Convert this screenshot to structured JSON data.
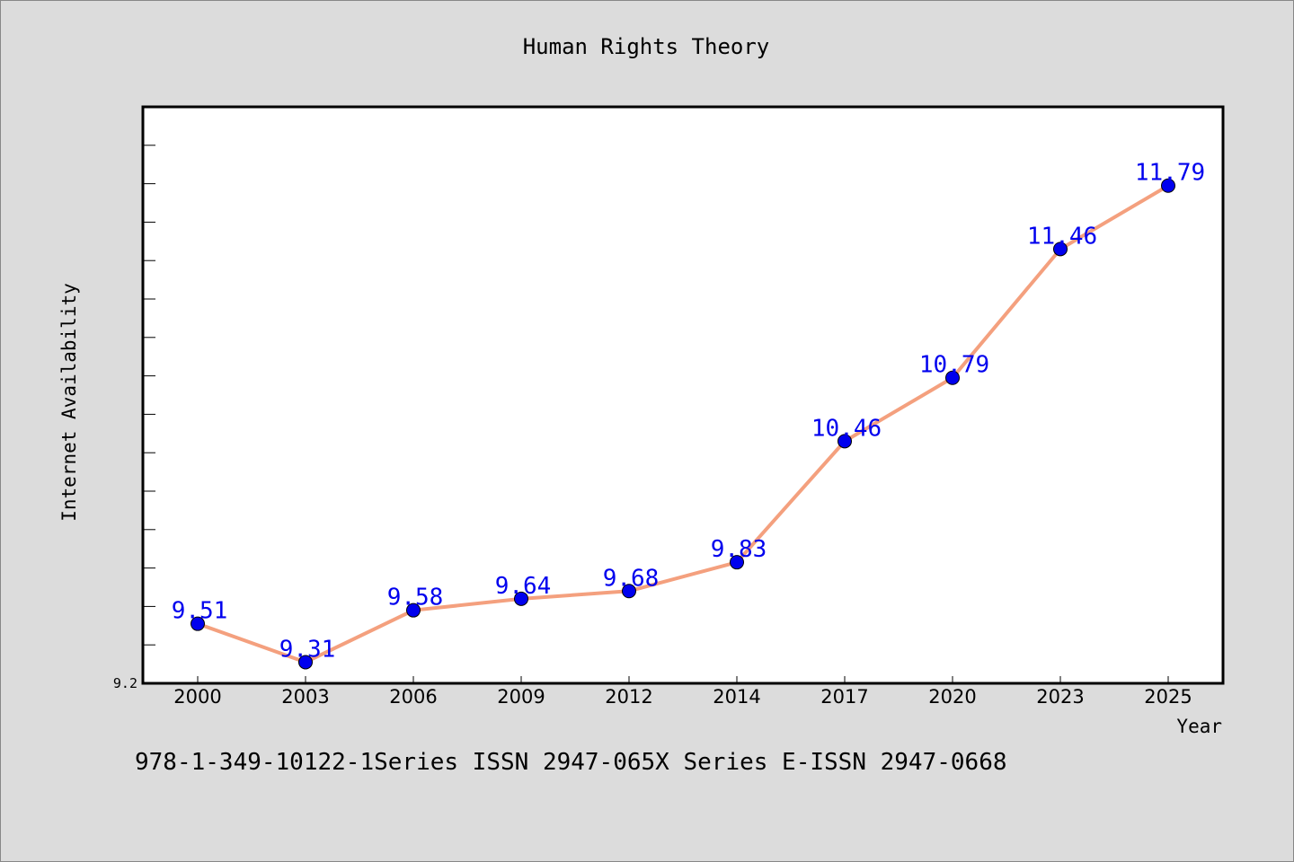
{
  "chart_data": {
    "type": "line",
    "title": "Human Rights Theory",
    "xlabel": "Year",
    "ylabel": "Internet Availability",
    "categories": [
      "2000",
      "2003",
      "2006",
      "2009",
      "2012",
      "2014",
      "2017",
      "2020",
      "2023",
      "2025"
    ],
    "series": [
      {
        "values": [
          9.51,
          9.31,
          9.58,
          9.64,
          9.68,
          9.83,
          10.46,
          10.79,
          11.46,
          11.79
        ],
        "line_color": "#f4a07e",
        "marker_color": "#0000ee"
      }
    ],
    "data_labels": [
      "9.51",
      "9.31",
      "9.58",
      "9.64",
      "9.68",
      "9.83",
      "10.46",
      "10.79",
      "11.46",
      "11.79"
    ],
    "data_label_color": "#0000ee",
    "ylim": [
      9.2,
      12.2
    ],
    "ytick_labels": [
      "9.2"
    ],
    "grid": false
  },
  "footer": {
    "text": "978-1-349-10122-1Series ISSN 2947-065X Series E-ISSN 2947-0668"
  },
  "colors": {
    "background": "#dcdcdc",
    "plot_background": "#ffffff"
  }
}
